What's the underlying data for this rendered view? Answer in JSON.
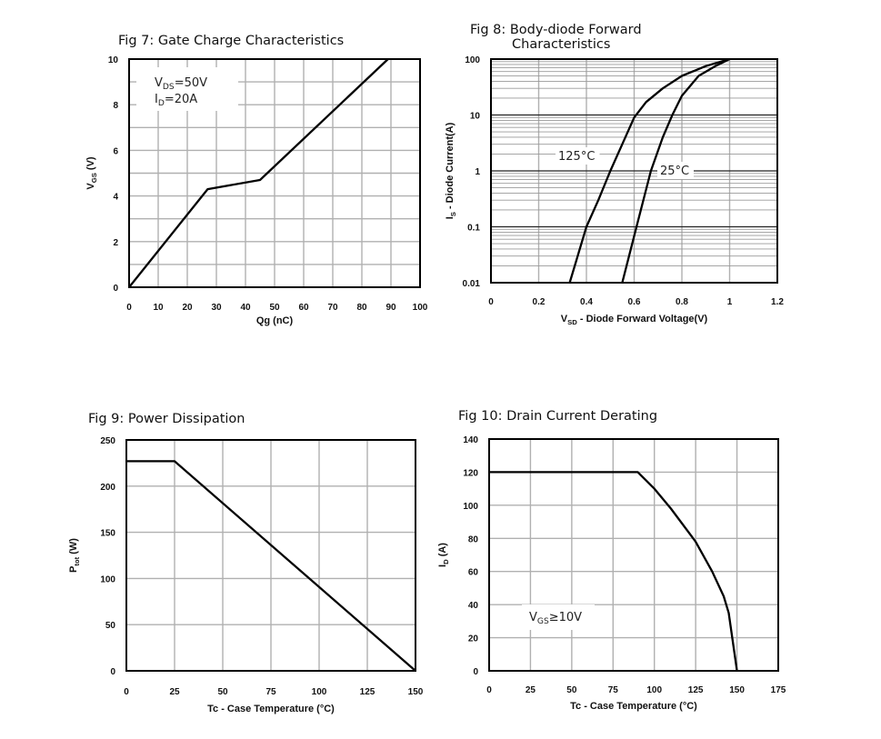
{
  "chart_data": [
    {
      "id": "fig7",
      "type": "line",
      "title": [
        "Fig 7: Gate Charge Characteristics"
      ],
      "xlabel": {
        "base": "Qg (nC)",
        "sub": "",
        "rest": ""
      },
      "ylabel": {
        "base": "V",
        "sub": "GS",
        "rest": " (V)"
      },
      "xlim": [
        0,
        100
      ],
      "ylim": [
        0,
        10
      ],
      "yscale": "linear",
      "xticks": [
        0,
        10,
        20,
        30,
        40,
        50,
        60,
        70,
        80,
        90,
        100
      ],
      "yticks": [
        0,
        2,
        4,
        6,
        8,
        10
      ],
      "grid": true,
      "grid_x_step": 10,
      "grid_y_step": 1,
      "annotations": [
        {
          "base": "V",
          "sub": "DS",
          "rest": "=50V"
        },
        {
          "base": "I",
          "sub": "D",
          "rest": "=20A"
        }
      ],
      "series": [
        {
          "x": [
            0,
            27,
            45,
            89
          ],
          "y": [
            0,
            4.3,
            4.7,
            10
          ]
        }
      ]
    },
    {
      "id": "fig8",
      "type": "line",
      "title": [
        "Fig 8: Body-diode Forward",
        "Characteristics"
      ],
      "xlabel": {
        "base": "V",
        "sub": "SD",
        "rest": " - Diode Forward Voltage(V)"
      },
      "ylabel": {
        "base": "I",
        "sub": "S",
        "rest": " - Diode Current(A)"
      },
      "xlim": [
        0,
        1.2
      ],
      "ylim": [
        0.01,
        100
      ],
      "yscale": "log",
      "xticks": [
        0,
        0.2,
        0.4,
        0.6,
        0.8,
        1,
        1.2
      ],
      "yticks": [
        0.01,
        0.1,
        1,
        10,
        100
      ],
      "grid": true,
      "grid_x_step": 0.2,
      "annotations": [
        {
          "base": "125°C",
          "sub": "",
          "rest": ""
        },
        {
          "base": "25°C",
          "sub": "",
          "rest": ""
        }
      ],
      "series": [
        {
          "name": "125°C",
          "x": [
            0.33,
            0.4,
            0.45,
            0.5,
            0.55,
            0.6,
            0.65,
            0.72,
            0.8,
            0.9,
            1.0
          ],
          "y": [
            0.01,
            0.1,
            0.3,
            1,
            3,
            9,
            17,
            30,
            50,
            75,
            100
          ]
        },
        {
          "name": "25°C",
          "x": [
            0.55,
            0.61,
            0.67,
            0.72,
            0.76,
            0.8,
            0.87,
            0.94,
            1.0
          ],
          "y": [
            0.01,
            0.1,
            1,
            4,
            10,
            22,
            50,
            75,
            100
          ]
        }
      ]
    },
    {
      "id": "fig9",
      "type": "line",
      "title": [
        "Fig 9: Power Dissipation"
      ],
      "xlabel": {
        "base": "Tc - Case Temperature (°C)",
        "sub": "",
        "rest": ""
      },
      "ylabel": {
        "base": "P",
        "sub": "tot",
        "rest": " (W)"
      },
      "xlim": [
        0,
        150
      ],
      "ylim": [
        0,
        250
      ],
      "yscale": "linear",
      "xticks": [
        0,
        25,
        50,
        75,
        100,
        125,
        150
      ],
      "yticks": [
        0,
        50,
        100,
        150,
        200,
        250
      ],
      "grid": true,
      "grid_x_step": 25,
      "grid_y_step": 50,
      "annotations": [],
      "series": [
        {
          "x": [
            0,
            25,
            150
          ],
          "y": [
            227,
            227,
            0
          ]
        }
      ]
    },
    {
      "id": "fig10",
      "type": "line",
      "title": [
        "Fig 10: Drain Current Derating"
      ],
      "xlabel": {
        "base": "Tc - Case Temperature (°C)",
        "sub": "",
        "rest": ""
      },
      "ylabel": {
        "base": "I",
        "sub": "D",
        "rest": " (A)"
      },
      "xlim": [
        0,
        175
      ],
      "ylim": [
        0,
        140
      ],
      "yscale": "linear",
      "xticks": [
        0,
        25,
        50,
        75,
        100,
        125,
        150,
        175
      ],
      "yticks": [
        0,
        20,
        40,
        60,
        80,
        100,
        120,
        140
      ],
      "grid": true,
      "grid_x_step": 25,
      "grid_y_step": 20,
      "annotations": [
        {
          "base": "V",
          "sub": "GS",
          "rest": "≥10V"
        }
      ],
      "series": [
        {
          "x": [
            0,
            90,
            100,
            110,
            125,
            135,
            142,
            145,
            150
          ],
          "y": [
            120,
            120,
            110,
            98,
            78,
            60,
            45,
            35,
            0
          ]
        }
      ]
    }
  ]
}
